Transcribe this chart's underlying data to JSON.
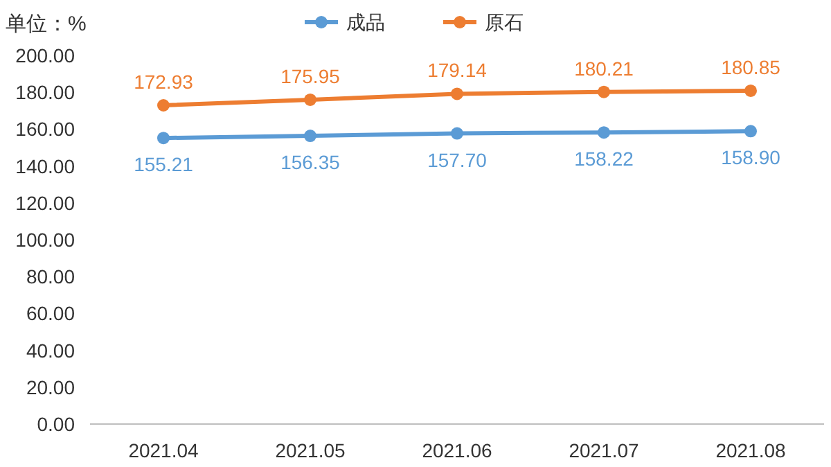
{
  "chart_data": {
    "type": "line",
    "ylabel": "单位：%",
    "categories": [
      "2021.04",
      "2021.05",
      "2021.06",
      "2021.07",
      "2021.08"
    ],
    "series": [
      {
        "name": "成品",
        "color": "#5b9bd5",
        "values": [
          155.21,
          156.35,
          157.7,
          158.22,
          158.9
        ],
        "value_labels": [
          "155.21",
          "156.35",
          "157.70",
          "158.22",
          "158.90"
        ]
      },
      {
        "name": "原石",
        "color": "#ed7d31",
        "values": [
          172.93,
          175.95,
          179.14,
          180.21,
          180.85
        ],
        "value_labels": [
          "172.93",
          "175.95",
          "179.14",
          "180.21",
          "180.85"
        ]
      }
    ],
    "ylim": [
      0,
      200
    ],
    "yticks": [
      {
        "value": 0,
        "label": "0.00"
      },
      {
        "value": 20,
        "label": "20.00"
      },
      {
        "value": 40,
        "label": "40.00"
      },
      {
        "value": 60,
        "label": "60.00"
      },
      {
        "value": 80,
        "label": "80.00"
      },
      {
        "value": 100,
        "label": "100.00"
      },
      {
        "value": 120,
        "label": "120.00"
      },
      {
        "value": 140,
        "label": "140.00"
      },
      {
        "value": 160,
        "label": "160.00"
      },
      {
        "value": 180,
        "label": "180.00"
      },
      {
        "value": 200,
        "label": "200.00"
      }
    ],
    "legend": "top",
    "marker": "circle",
    "line_style": "solid",
    "grid": false
  }
}
